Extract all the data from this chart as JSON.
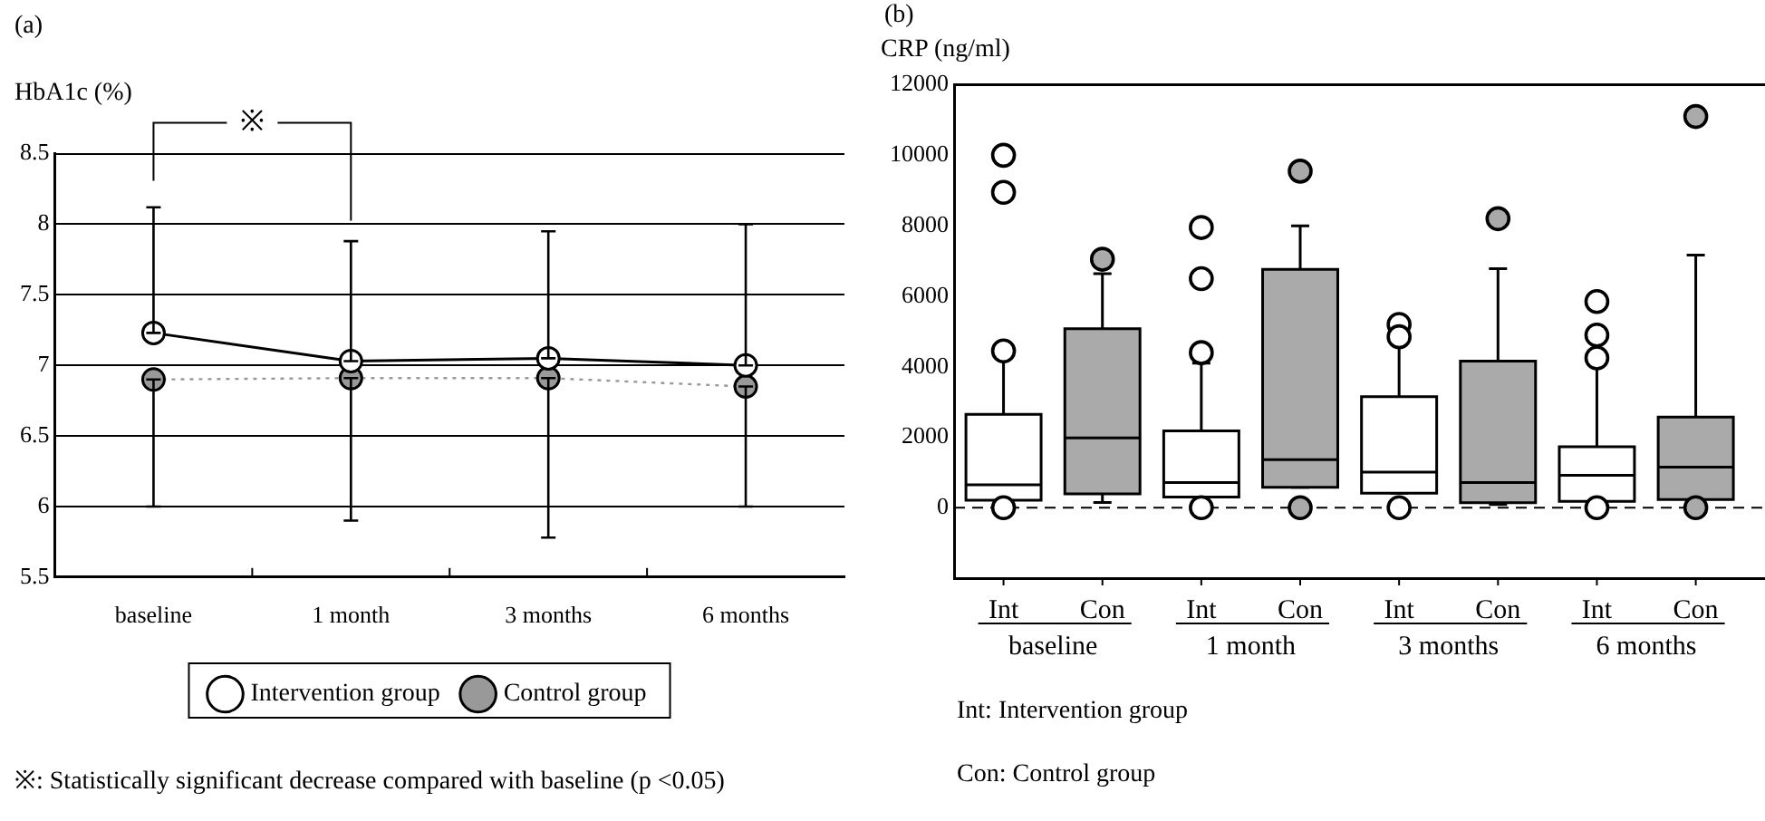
{
  "chart_data": [
    {
      "type": "line",
      "title": "(a)",
      "ylabel": "HbA1c (%)",
      "categories": [
        "baseline",
        "1 month",
        "3 months",
        "6 months"
      ],
      "series": [
        {
          "name": "Intervention group",
          "color": "#000000",
          "values": [
            7.23,
            7.03,
            7.05,
            7.0
          ],
          "errors": [
            [
              7.23,
              8.12
            ],
            [
              7.03,
              7.88
            ],
            [
              7.05,
              7.95
            ],
            [
              7.0,
              8.0
            ]
          ],
          "line_style": "solid"
        },
        {
          "name": "Control group",
          "color": "#999999",
          "values": [
            6.9,
            6.91,
            6.91,
            6.85
          ],
          "errors": [
            [
              6.0,
              6.9
            ],
            [
              5.9,
              6.91
            ],
            [
              5.78,
              6.91
            ],
            [
              6.0,
              6.85
            ]
          ],
          "line_style": "dotted"
        }
      ],
      "ylim": [
        5.5,
        8.5
      ],
      "yticks": [
        5.5,
        6,
        6.5,
        7,
        7.5,
        8,
        8.5
      ],
      "grid": "y",
      "legend": "bottom",
      "marker": "circle",
      "annotations": [
        "※",
        "※: Statistically significant decrease compared with baseline (p <0.05)"
      ]
    },
    {
      "type": "box",
      "title": "(b)",
      "ylabel": "CRP (ng/ml)",
      "categories": [
        "Int",
        "Con",
        "Int",
        "Con",
        "Int",
        "Con",
        "Int",
        "Con"
      ],
      "colors": [
        "#ffffff",
        "#aaaaaa",
        "#ffffff",
        "#aaaaaa",
        "#ffffff",
        "#aaaaaa",
        "#ffffff",
        "#aaaaaa"
      ],
      "boxes": [
        {
          "low": 200,
          "q1": 210,
          "median": 650,
          "q3": 2650,
          "high": 4400,
          "outliers": [
            10000,
            8950,
            4450,
            0
          ]
        },
        {
          "low": 150,
          "q1": 390,
          "median": 1980,
          "q3": 5080,
          "high": 6640,
          "outliers": [
            7050
          ]
        },
        {
          "low": 300,
          "q1": 300,
          "median": 710,
          "q3": 2180,
          "high": 4100,
          "outliers": [
            7950,
            6500,
            4400,
            0
          ]
        },
        {
          "low": 580,
          "q1": 580,
          "median": 1360,
          "q3": 6760,
          "high": 8000,
          "outliers": [
            9550,
            0
          ]
        },
        {
          "low": 410,
          "q1": 410,
          "median": 1010,
          "q3": 3150,
          "high": 4700,
          "outliers": [
            5200,
            4850,
            0
          ]
        },
        {
          "low": 90,
          "q1": 140,
          "median": 710,
          "q3": 4160,
          "high": 6780,
          "outliers": [
            8200
          ]
        },
        {
          "low": 180,
          "q1": 180,
          "median": 920,
          "q3": 1730,
          "high": 4250,
          "outliers": [
            5850,
            4900,
            4250,
            0
          ]
        },
        {
          "low": 230,
          "q1": 230,
          "median": 1150,
          "q3": 2570,
          "high": 7170,
          "outliers": [
            11100,
            0
          ]
        }
      ],
      "ylim": [
        -2000,
        12000
      ],
      "yticks": [
        0,
        2000,
        4000,
        6000,
        8000,
        10000,
        12000
      ],
      "ref_lines": [
        {
          "axis": "y",
          "value": 0,
          "line_style": "dashed"
        }
      ],
      "annotations": [
        "baseline",
        "1 month",
        "3 months",
        "6 months",
        "Int: Intervention group",
        "Con: Control group"
      ]
    }
  ]
}
